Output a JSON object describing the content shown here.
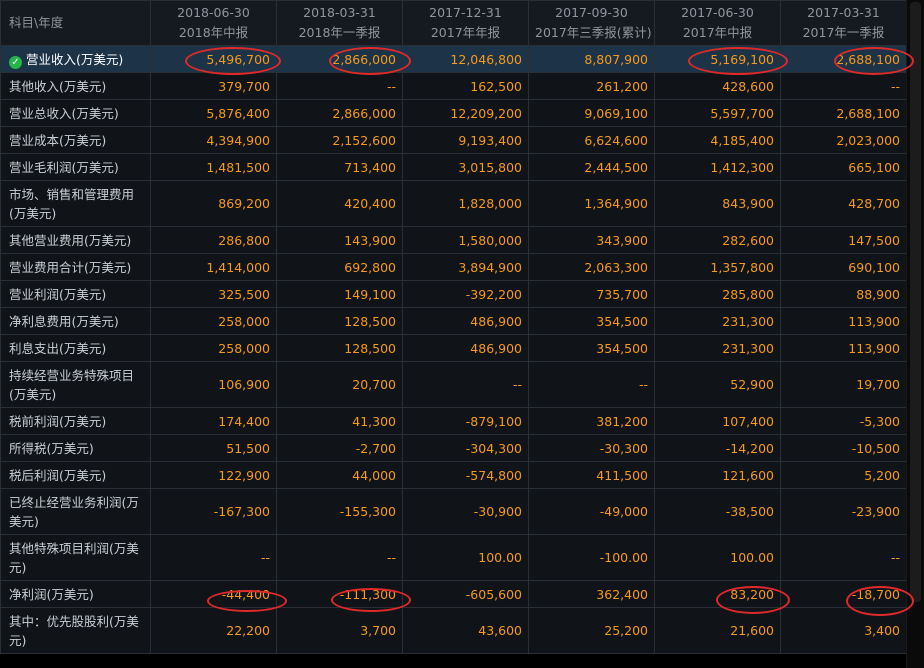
{
  "header": {
    "first_col": "科目\\年度",
    "periods": [
      {
        "date": "2018-06-30",
        "name": "2018年中报"
      },
      {
        "date": "2018-03-31",
        "name": "2018年一季报"
      },
      {
        "date": "2017-12-31",
        "name": "2017年年报"
      },
      {
        "date": "2017-09-30",
        "name": "2017年三季报(累计)"
      },
      {
        "date": "2017-06-30",
        "name": "2017年中报"
      },
      {
        "date": "2017-03-31",
        "name": "2017年一季报"
      }
    ]
  },
  "rows": [
    {
      "label": "营业收入(万美元)",
      "selected": true,
      "values": [
        "5,496,700",
        "2,866,000",
        "12,046,800",
        "8,807,900",
        "5,169,100",
        "2,688,100"
      ]
    },
    {
      "label": "其他收入(万美元)",
      "values": [
        "379,700",
        "--",
        "162,500",
        "261,200",
        "428,600",
        "--"
      ]
    },
    {
      "label": "营业总收入(万美元)",
      "values": [
        "5,876,400",
        "2,866,000",
        "12,209,200",
        "9,069,100",
        "5,597,700",
        "2,688,100"
      ]
    },
    {
      "label": "营业成本(万美元)",
      "values": [
        "4,394,900",
        "2,152,600",
        "9,193,400",
        "6,624,600",
        "4,185,400",
        "2,023,000"
      ]
    },
    {
      "label": "营业毛利润(万美元)",
      "values": [
        "1,481,500",
        "713,400",
        "3,015,800",
        "2,444,500",
        "1,412,300",
        "665,100"
      ]
    },
    {
      "label": "市场、销售和管理费用(万美元)",
      "tall": true,
      "values": [
        "869,200",
        "420,400",
        "1,828,000",
        "1,364,900",
        "843,900",
        "428,700"
      ]
    },
    {
      "label": "其他营业费用(万美元)",
      "values": [
        "286,800",
        "143,900",
        "1,580,000",
        "343,900",
        "282,600",
        "147,500"
      ]
    },
    {
      "label": "营业费用合计(万美元)",
      "values": [
        "1,414,000",
        "692,800",
        "3,894,900",
        "2,063,300",
        "1,357,800",
        "690,100"
      ]
    },
    {
      "label": "营业利润(万美元)",
      "values": [
        "325,500",
        "149,100",
        "-392,200",
        "735,700",
        "285,800",
        "88,900"
      ]
    },
    {
      "label": "净利息费用(万美元)",
      "values": [
        "258,000",
        "128,500",
        "486,900",
        "354,500",
        "231,300",
        "113,900"
      ]
    },
    {
      "label": "利息支出(万美元)",
      "values": [
        "258,000",
        "128,500",
        "486,900",
        "354,500",
        "231,300",
        "113,900"
      ]
    },
    {
      "label": "持续经营业务特殊项目(万美元)",
      "tall": true,
      "values": [
        "106,900",
        "20,700",
        "--",
        "--",
        "52,900",
        "19,700"
      ]
    },
    {
      "label": "税前利润(万美元)",
      "values": [
        "174,400",
        "41,300",
        "-879,100",
        "381,200",
        "107,400",
        "-5,300"
      ]
    },
    {
      "label": "所得税(万美元)",
      "values": [
        "51,500",
        "-2,700",
        "-304,300",
        "-30,300",
        "-14,200",
        "-10,500"
      ]
    },
    {
      "label": "税后利润(万美元)",
      "values": [
        "122,900",
        "44,000",
        "-574,800",
        "411,500",
        "121,600",
        "5,200"
      ]
    },
    {
      "label": "已终止经营业务利润(万美元)",
      "tall": true,
      "values": [
        "-167,300",
        "-155,300",
        "-30,900",
        "-49,000",
        "-38,500",
        "-23,900"
      ]
    },
    {
      "label": "其他特殊项目利润(万美元)",
      "tall": true,
      "values": [
        "--",
        "--",
        "100.00",
        "-100.00",
        "100.00",
        "--"
      ]
    },
    {
      "label": "净利润(万美元)",
      "values": [
        "-44,400",
        "-111,300",
        "-605,600",
        "362,400",
        "83,200",
        "-18,700"
      ]
    },
    {
      "label": "其中：优先股股利(万美元)",
      "tall": true,
      "values": [
        "22,200",
        "3,700",
        "43,600",
        "25,200",
        "21,600",
        "3,400"
      ]
    }
  ],
  "colors": {
    "value": "#f59a1b",
    "label": "#c9ced4",
    "header": "#8d96a0",
    "selected_bg": "#1d3347",
    "annotation": "#e02a2a",
    "check": "#27b44a"
  },
  "icons": {
    "selected_marker": "check-circle-icon"
  }
}
